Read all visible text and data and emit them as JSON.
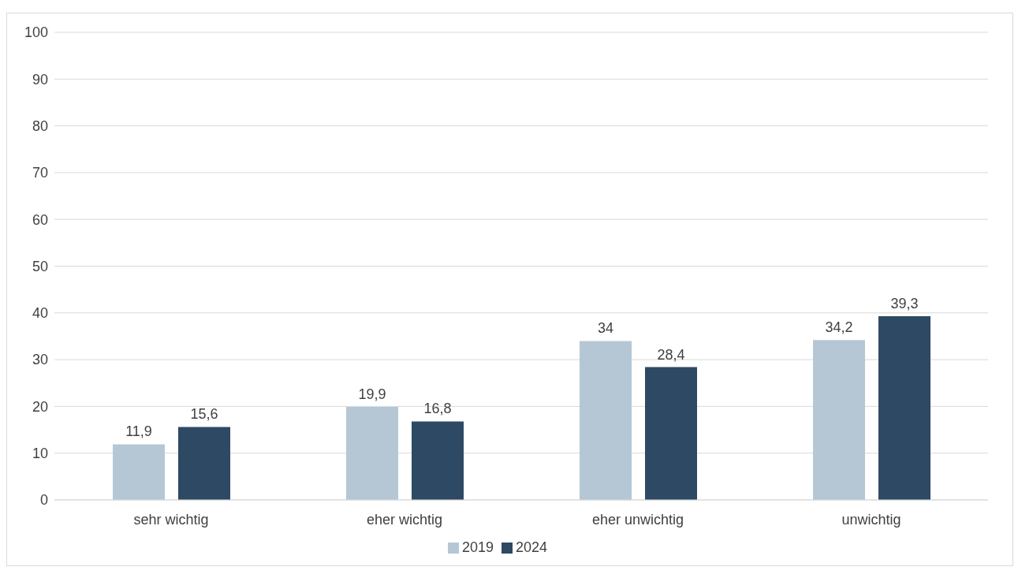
{
  "chart_data": {
    "type": "bar",
    "categories": [
      "sehr wichtig",
      "eher wichtig",
      "eher unwichtig",
      "unwichtig"
    ],
    "series": [
      {
        "name": "2019",
        "color": "#b5c7d5",
        "values": [
          11.9,
          19.9,
          34,
          34.2
        ],
        "value_labels": [
          "11,9",
          "19,9",
          "34",
          "34,2"
        ]
      },
      {
        "name": "2024",
        "color": "#2e4963",
        "values": [
          15.6,
          16.8,
          28.4,
          39.3
        ],
        "value_labels": [
          "15,6",
          "16,8",
          "28,4",
          "39,3"
        ]
      }
    ],
    "ylim": [
      0,
      100
    ],
    "yticks": [
      0,
      10,
      20,
      30,
      40,
      50,
      60,
      70,
      80,
      90,
      100
    ],
    "grid": "y",
    "legend": "bottom"
  }
}
